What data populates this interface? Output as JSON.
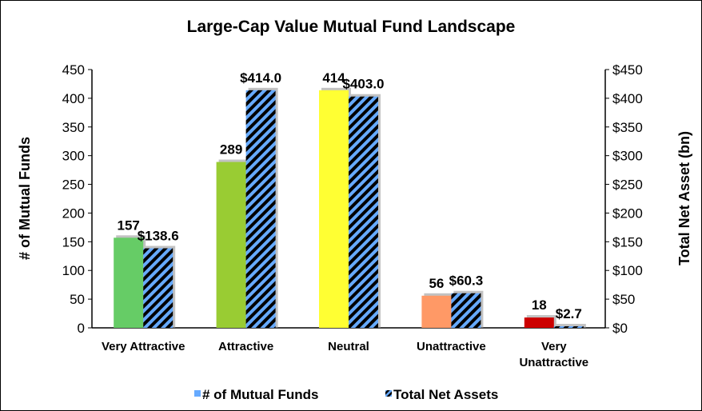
{
  "chart_data": {
    "type": "bar",
    "title": "Large-Cap Value Mutual Fund Landscape",
    "ylabel_left": "# of Mutual Funds",
    "ylabel_right": "Total Net Asset (bn)",
    "ylim": [
      0,
      450
    ],
    "ylim_right": [
      0,
      450
    ],
    "yticks_left": [
      "0",
      "50",
      "100",
      "150",
      "200",
      "250",
      "300",
      "350",
      "400",
      "450"
    ],
    "yticks_right": [
      "$0",
      "$50",
      "$100",
      "$150",
      "$200",
      "$250",
      "$300",
      "$350",
      "$400",
      "$450"
    ],
    "categories": [
      [
        "Very Attractive"
      ],
      [
        "Attractive"
      ],
      [
        "Neutral"
      ],
      [
        "Unattractive"
      ],
      [
        "Very",
        "Unattractive"
      ]
    ],
    "series": [
      {
        "name": "# of Mutual Funds",
        "axis": "left",
        "values": [
          157,
          289,
          414,
          56,
          18
        ],
        "labels": [
          "157",
          "289",
          "414",
          "56",
          "18"
        ],
        "colors": [
          "#66cc66",
          "#99cc33",
          "#ffff33",
          "#ff9966",
          "#cc0000"
        ]
      },
      {
        "name": "Total Net Assets",
        "axis": "right",
        "values": [
          138.6,
          414.0,
          403.0,
          60.3,
          2.7
        ],
        "labels": [
          "$138.6",
          "$414.0",
          "$403.0",
          "$60.3",
          "$2.7"
        ],
        "pattern": "diagonal-stripes",
        "colors": [
          "#66aaff",
          "#000000"
        ]
      }
    ],
    "legend": {
      "position": "bottom",
      "items": [
        "# of Mutual Funds",
        "Total Net Assets"
      ],
      "colors": [
        "#66aaff",
        "#000000"
      ]
    },
    "grid": false
  }
}
